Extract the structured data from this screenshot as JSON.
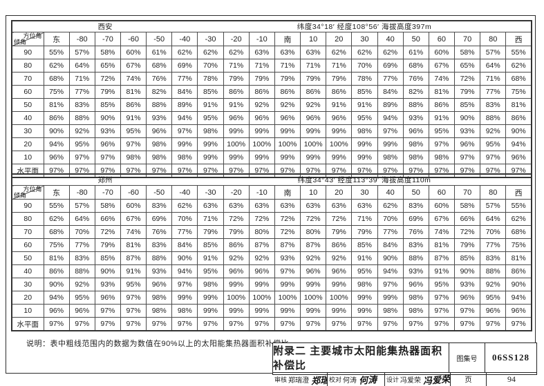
{
  "doc": {
    "note": "说明：表中粗线范围内的数据为数值在90%以上的太阳能集热器面积补偿比。",
    "bold_thresholds": [
      90,
      95
    ],
    "title_block": {
      "title": "附录二 主要城市太阳能集热器面积补偿比",
      "atlas_label": "图集号",
      "atlas_no": "06SS128",
      "page_label": "页",
      "page_no": "94",
      "reviewer_label": "审核",
      "reviewer_name": "郑瑞澄",
      "reviewer_signature": "郑瑞澄",
      "proofreader_label": "校对",
      "proofreader_name": "何涛",
      "proofreader_signature": "何涛",
      "designer_label": "设计",
      "designer_name": "冯爱荣",
      "designer_signature": "冯爱荣"
    }
  },
  "tables": [
    {
      "city": "西安",
      "location": "纬度34°18′  经度108°56′  海拔高度397m",
      "corner_top": "方位角",
      "corner_bottom": "倾角",
      "columns": [
        "东",
        "-80",
        "-70",
        "-60",
        "-50",
        "-40",
        "-30",
        "-20",
        "-10",
        "南",
        "10",
        "20",
        "30",
        "40",
        "50",
        "60",
        "70",
        "80",
        "西"
      ],
      "rows": [
        {
          "label": "90",
          "values": [
            "55%",
            "57%",
            "58%",
            "60%",
            "61%",
            "62%",
            "62%",
            "62%",
            "63%",
            "63%",
            "63%",
            "62%",
            "62%",
            "62%",
            "61%",
            "60%",
            "58%",
            "57%",
            "55%"
          ]
        },
        {
          "label": "80",
          "values": [
            "62%",
            "64%",
            "65%",
            "67%",
            "68%",
            "69%",
            "70%",
            "71%",
            "71%",
            "71%",
            "71%",
            "71%",
            "70%",
            "69%",
            "68%",
            "67%",
            "65%",
            "64%",
            "62%"
          ]
        },
        {
          "label": "70",
          "values": [
            "68%",
            "71%",
            "72%",
            "74%",
            "76%",
            "77%",
            "78%",
            "79%",
            "79%",
            "79%",
            "79%",
            "79%",
            "78%",
            "77%",
            "76%",
            "74%",
            "72%",
            "71%",
            "68%"
          ]
        },
        {
          "label": "60",
          "values": [
            "75%",
            "77%",
            "79%",
            "81%",
            "82%",
            "84%",
            "85%",
            "86%",
            "86%",
            "86%",
            "86%",
            "86%",
            "85%",
            "84%",
            "82%",
            "81%",
            "79%",
            "77%",
            "75%"
          ]
        },
        {
          "label": "50",
          "values": [
            "81%",
            "83%",
            "85%",
            "86%",
            "88%",
            "89%",
            "91%",
            "91%",
            "92%",
            "92%",
            "92%",
            "91%",
            "91%",
            "89%",
            "88%",
            "86%",
            "85%",
            "83%",
            "81%"
          ]
        },
        {
          "label": "40",
          "values": [
            "86%",
            "88%",
            "90%",
            "91%",
            "93%",
            "94%",
            "95%",
            "96%",
            "96%",
            "96%",
            "96%",
            "96%",
            "95%",
            "94%",
            "93%",
            "91%",
            "90%",
            "88%",
            "86%"
          ]
        },
        {
          "label": "30",
          "values": [
            "90%",
            "92%",
            "93%",
            "95%",
            "96%",
            "97%",
            "98%",
            "99%",
            "99%",
            "99%",
            "99%",
            "99%",
            "98%",
            "97%",
            "96%",
            "95%",
            "93%",
            "92%",
            "90%"
          ]
        },
        {
          "label": "20",
          "values": [
            "94%",
            "95%",
            "96%",
            "97%",
            "98%",
            "99%",
            "99%",
            "100%",
            "100%",
            "100%",
            "100%",
            "100%",
            "99%",
            "99%",
            "98%",
            "97%",
            "96%",
            "95%",
            "94%"
          ]
        },
        {
          "label": "10",
          "values": [
            "96%",
            "97%",
            "97%",
            "98%",
            "98%",
            "98%",
            "99%",
            "99%",
            "99%",
            "99%",
            "99%",
            "99%",
            "99%",
            "98%",
            "98%",
            "98%",
            "97%",
            "97%",
            "96%"
          ]
        },
        {
          "label": "水平面",
          "values": [
            "97%",
            "97%",
            "97%",
            "97%",
            "97%",
            "97%",
            "97%",
            "97%",
            "97%",
            "97%",
            "97%",
            "97%",
            "97%",
            "97%",
            "97%",
            "97%",
            "97%",
            "97%",
            "97%"
          ]
        }
      ]
    },
    {
      "city": "郑州",
      "location": "纬度34°43′  经度113°39′  海拔高度110m",
      "corner_top": "方位角",
      "corner_bottom": "倾角",
      "columns": [
        "东",
        "-80",
        "-70",
        "-60",
        "-50",
        "-40",
        "-30",
        "-20",
        "-10",
        "南",
        "10",
        "20",
        "30",
        "40",
        "50",
        "60",
        "70",
        "80",
        "西"
      ],
      "rows": [
        {
          "label": "90",
          "values": [
            "55%",
            "57%",
            "58%",
            "60%",
            "83%",
            "62%",
            "63%",
            "63%",
            "63%",
            "63%",
            "63%",
            "63%",
            "63%",
            "62%",
            "83%",
            "60%",
            "58%",
            "57%",
            "55%"
          ]
        },
        {
          "label": "80",
          "values": [
            "62%",
            "64%",
            "66%",
            "67%",
            "69%",
            "70%",
            "71%",
            "72%",
            "72%",
            "72%",
            "72%",
            "72%",
            "71%",
            "70%",
            "69%",
            "67%",
            "66%",
            "64%",
            "62%"
          ]
        },
        {
          "label": "70",
          "values": [
            "68%",
            "70%",
            "72%",
            "74%",
            "76%",
            "77%",
            "79%",
            "79%",
            "80%",
            "72%",
            "80%",
            "79%",
            "79%",
            "77%",
            "76%",
            "74%",
            "72%",
            "70%",
            "68%"
          ]
        },
        {
          "label": "60",
          "values": [
            "75%",
            "77%",
            "79%",
            "81%",
            "83%",
            "84%",
            "85%",
            "86%",
            "87%",
            "87%",
            "87%",
            "86%",
            "85%",
            "84%",
            "83%",
            "81%",
            "79%",
            "77%",
            "75%"
          ]
        },
        {
          "label": "50",
          "values": [
            "81%",
            "83%",
            "85%",
            "87%",
            "88%",
            "90%",
            "91%",
            "92%",
            "92%",
            "93%",
            "92%",
            "92%",
            "91%",
            "90%",
            "88%",
            "87%",
            "85%",
            "83%",
            "81%"
          ]
        },
        {
          "label": "40",
          "values": [
            "86%",
            "88%",
            "90%",
            "91%",
            "93%",
            "94%",
            "95%",
            "96%",
            "96%",
            "97%",
            "96%",
            "96%",
            "95%",
            "94%",
            "93%",
            "91%",
            "90%",
            "88%",
            "86%"
          ]
        },
        {
          "label": "30",
          "values": [
            "90%",
            "92%",
            "93%",
            "95%",
            "96%",
            "97%",
            "98%",
            "99%",
            "99%",
            "99%",
            "99%",
            "99%",
            "98%",
            "97%",
            "96%",
            "95%",
            "93%",
            "92%",
            "90%"
          ]
        },
        {
          "label": "20",
          "values": [
            "94%",
            "95%",
            "96%",
            "97%",
            "98%",
            "99%",
            "99%",
            "100%",
            "100%",
            "100%",
            "100%",
            "100%",
            "99%",
            "99%",
            "98%",
            "97%",
            "96%",
            "95%",
            "94%"
          ]
        },
        {
          "label": "10",
          "values": [
            "96%",
            "96%",
            "97%",
            "97%",
            "98%",
            "98%",
            "99%",
            "99%",
            "99%",
            "99%",
            "99%",
            "99%",
            "99%",
            "98%",
            "98%",
            "97%",
            "97%",
            "96%",
            "96%"
          ]
        },
        {
          "label": "水平面",
          "values": [
            "97%",
            "97%",
            "97%",
            "97%",
            "97%",
            "97%",
            "97%",
            "97%",
            "97%",
            "97%",
            "97%",
            "97%",
            "97%",
            "97%",
            "97%",
            "97%",
            "97%",
            "97%",
            "97%"
          ]
        }
      ]
    }
  ]
}
